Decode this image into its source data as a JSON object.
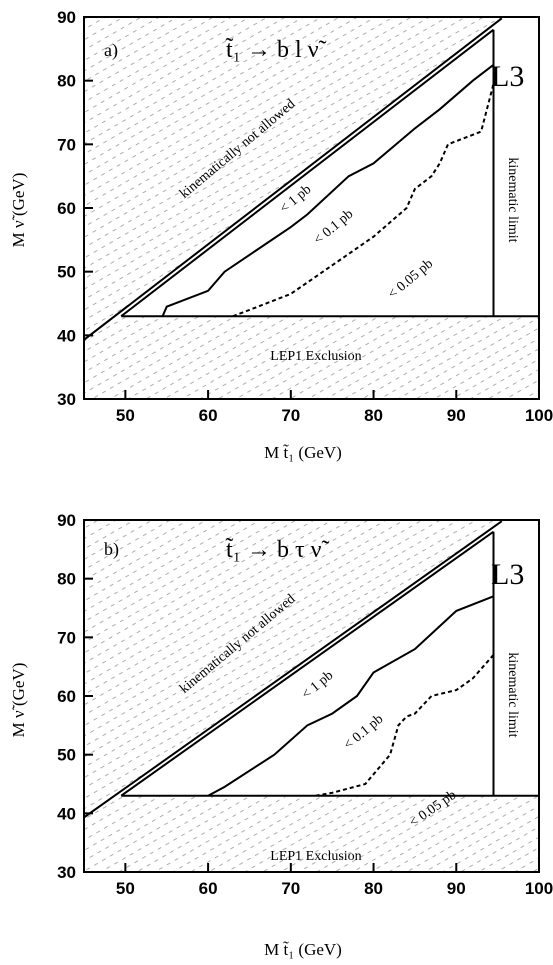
{
  "chart_data": [
    {
      "type": "line",
      "panel_letter": "a)",
      "reaction": "t̃₁ → b l ν̃",
      "brand": "L3",
      "xlabel": "M t̃₁ (GeV)",
      "ylabel": "M ν̃ (GeV)",
      "xlim": [
        45,
        100
      ],
      "ylim": [
        30,
        90
      ],
      "x_ticks": [
        50,
        60,
        70,
        80,
        90,
        100
      ],
      "y_ticks": [
        30,
        40,
        50,
        60,
        70,
        80,
        90
      ],
      "regions": {
        "kinematic_forbidden": "kinematically not allowed",
        "lep1": "LEP1 Exclusion",
        "kinematic_limit": "kinematic limit"
      },
      "lep1_limit": 43,
      "kinematic_limit_x": 94.5,
      "boundaries": [
        {
          "x": [
            45,
            95.5
          ],
          "y": [
            39.3,
            89.8
          ]
        },
        {
          "x": [
            49.5,
            94.5
          ],
          "y": [
            43,
            88
          ]
        }
      ],
      "series": [
        {
          "label": "< 1 pb",
          "style": "solid",
          "x": [
            54.5,
            55,
            60,
            62,
            70,
            72,
            77,
            80,
            85,
            88,
            92,
            94.5
          ],
          "y": [
            43,
            44.5,
            47,
            50,
            57,
            59,
            65,
            67,
            72.5,
            75.5,
            80,
            82.5
          ]
        },
        {
          "label": "< 0.1 pb",
          "style": "dashed",
          "x": [
            63,
            65,
            70,
            75,
            80,
            84,
            85,
            87,
            88,
            89,
            93,
            94.5
          ],
          "y": [
            43,
            44,
            46.5,
            51,
            55.5,
            60,
            63,
            65,
            67,
            70,
            72,
            79.5
          ]
        },
        {
          "label": "< 0.05 pb",
          "style": "none",
          "x": [],
          "y": []
        }
      ]
    },
    {
      "type": "line",
      "panel_letter": "b)",
      "reaction": "t̃₁ → b τ ν̃",
      "brand": "L3",
      "xlabel": "M t̃₁ (GeV)",
      "ylabel": "M ν̃ (GeV)",
      "xlim": [
        45,
        100
      ],
      "ylim": [
        30,
        90
      ],
      "x_ticks": [
        50,
        60,
        70,
        80,
        90,
        100
      ],
      "y_ticks": [
        30,
        40,
        50,
        60,
        70,
        80,
        90
      ],
      "regions": {
        "kinematic_forbidden": "kinematically not allowed",
        "lep1": "LEP1 Exclusion",
        "kinematic_limit": "kinematic limit"
      },
      "lep1_limit": 43,
      "kinematic_limit_x": 94.5,
      "boundaries": [
        {
          "x": [
            45,
            95.5
          ],
          "y": [
            39.3,
            89.8
          ]
        },
        {
          "x": [
            49.5,
            94.5
          ],
          "y": [
            43,
            88
          ]
        }
      ],
      "series": [
        {
          "label": "< 1 pb",
          "style": "solid",
          "x": [
            60,
            62,
            68,
            72,
            75,
            78,
            80,
            85,
            90,
            94.5
          ],
          "y": [
            43,
            44.5,
            50,
            55,
            57,
            60,
            64,
            68,
            74.5,
            77
          ]
        },
        {
          "label": "< 0.1 pb",
          "style": "dashed",
          "x": [
            73,
            75,
            79,
            82,
            83,
            84,
            85,
            87,
            90,
            92,
            94.5
          ],
          "y": [
            43,
            43.5,
            45,
            50,
            55,
            56.5,
            57,
            60,
            61,
            63,
            67
          ]
        },
        {
          "label": "< 0.05 pb",
          "style": "none",
          "x": [],
          "y": []
        }
      ]
    }
  ]
}
